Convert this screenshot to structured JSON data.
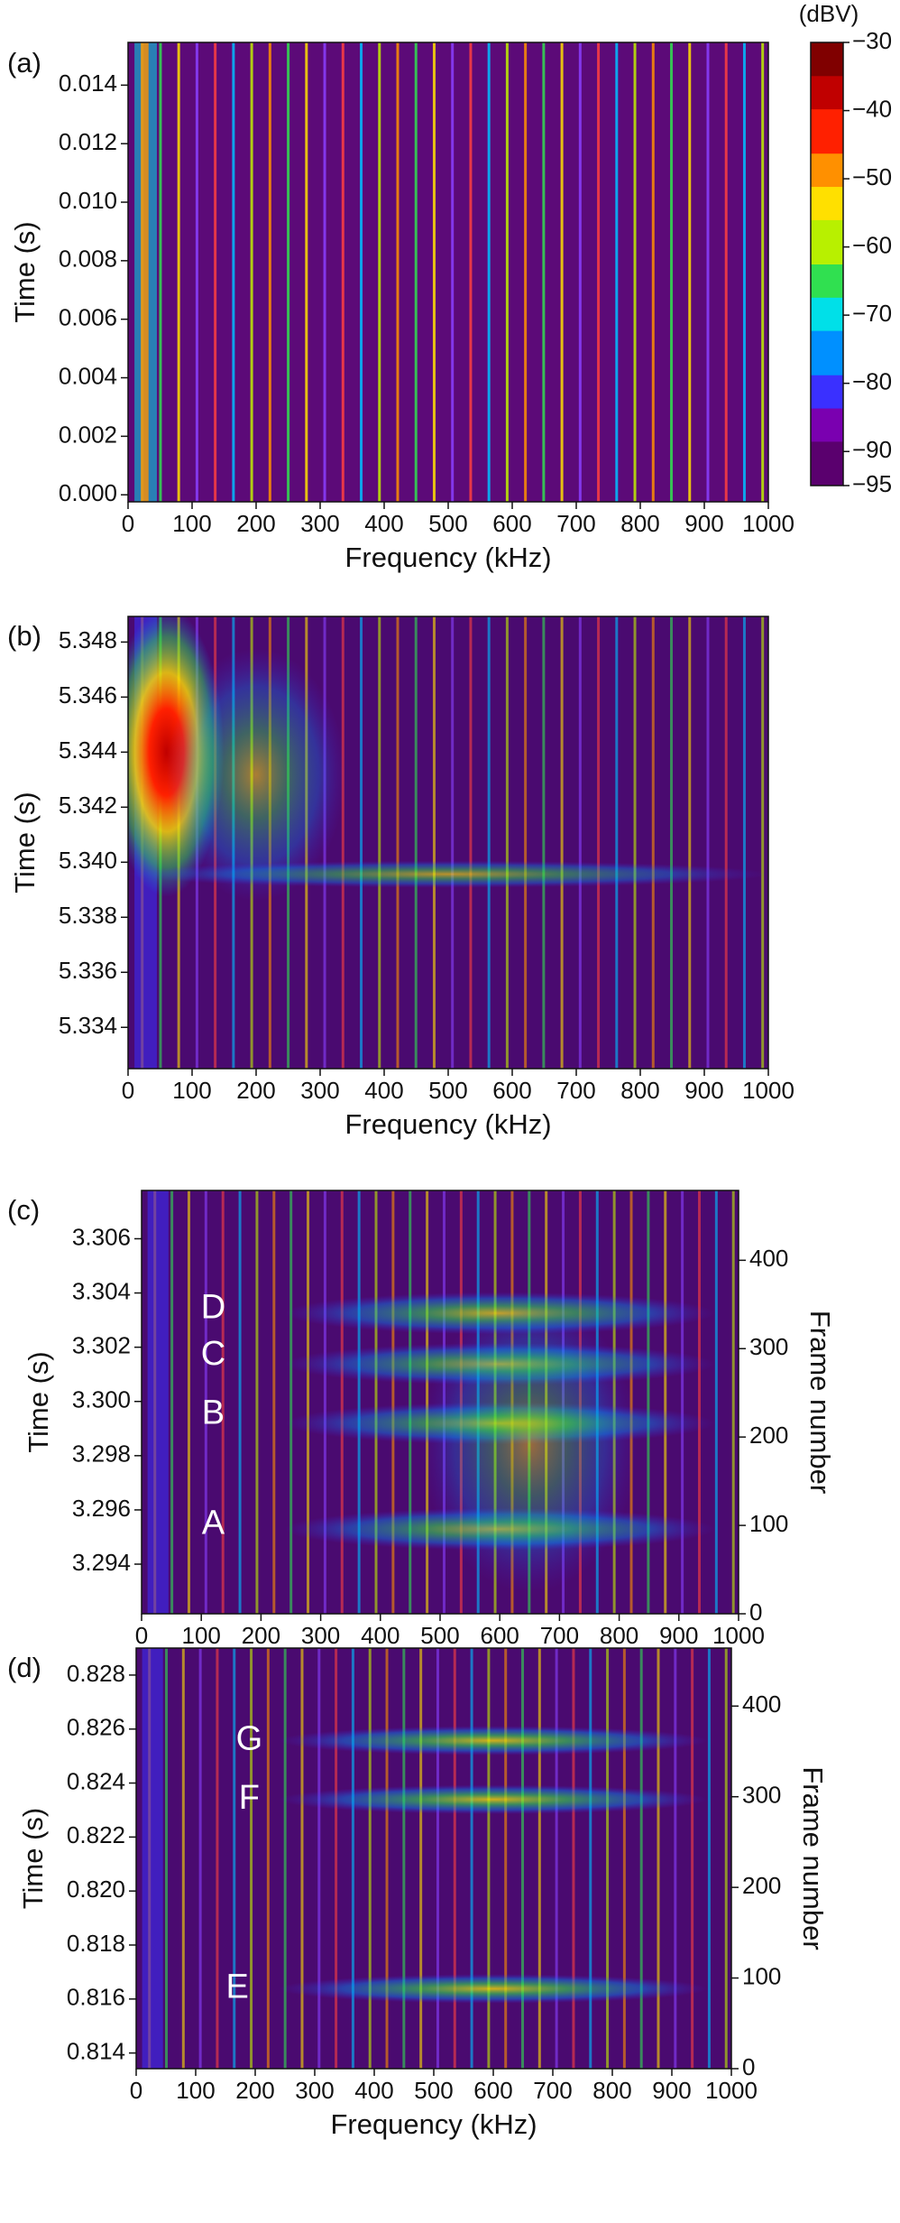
{
  "chart_data": [
    {
      "type": "heatmap",
      "panel_label": "(a)",
      "xlabel": "Frequency (kHz)",
      "ylabel": "Time (s)",
      "xlim": [
        0,
        1000
      ],
      "xticks": [
        0,
        100,
        200,
        300,
        400,
        500,
        600,
        700,
        800,
        900,
        1000
      ],
      "ylim": [
        -0.00024,
        0.01546
      ],
      "yticks": [
        {
          "value": 0,
          "label": "0.000"
        },
        {
          "value": 0.002,
          "label": "0.002"
        },
        {
          "value": 0.004,
          "label": "0.004"
        },
        {
          "value": 0.006,
          "label": "0.006"
        },
        {
          "value": 0.008,
          "label": "0.008"
        },
        {
          "value": 0.01,
          "label": "0.010"
        },
        {
          "value": 0.012,
          "label": "0.012"
        },
        {
          "value": 0.014,
          "label": "0.014"
        }
      ],
      "colorbar": {
        "label": "(dBV)",
        "clim": [
          -95,
          -30
        ],
        "ticks": [
          {
            "value": -30,
            "label": "−30"
          },
          {
            "value": -40,
            "label": "−40"
          },
          {
            "value": -50,
            "label": "−50"
          },
          {
            "value": -60,
            "label": "−60"
          },
          {
            "value": -70,
            "label": "−70"
          },
          {
            "value": -80,
            "label": "−80"
          },
          {
            "value": -90,
            "label": "−90"
          },
          {
            "value": -95,
            "label": "−95"
          }
        ],
        "colors": [
          "#5a006e",
          "#7a00b0",
          "#3a30ff",
          "#0090ff",
          "#00e0e8",
          "#30e050",
          "#b8f000",
          "#ffe000",
          "#ff9000",
          "#ff2000",
          "#c00000",
          "#800000"
        ]
      }
    },
    {
      "type": "heatmap",
      "panel_label": "(b)",
      "xlabel": "Frequency (kHz)",
      "ylabel": "Time (s)",
      "xlim": [
        0,
        1000
      ],
      "xticks": [
        0,
        100,
        200,
        300,
        400,
        500,
        600,
        700,
        800,
        900,
        1000
      ],
      "ylim": [
        5.3325,
        5.34893
      ],
      "yticks": [
        {
          "value": 5.334,
          "label": "5.334"
        },
        {
          "value": 5.336,
          "label": "5.336"
        },
        {
          "value": 5.338,
          "label": "5.338"
        },
        {
          "value": 5.34,
          "label": "5.340"
        },
        {
          "value": 5.342,
          "label": "5.342"
        },
        {
          "value": 5.344,
          "label": "5.344"
        },
        {
          "value": 5.346,
          "label": "5.346"
        },
        {
          "value": 5.348,
          "label": "5.348"
        }
      ]
    },
    {
      "type": "heatmap",
      "panel_label": "(c)",
      "xlabel": "Frequency (kHz)",
      "ylabel": "Time (s)",
      "y2label": "Frame number",
      "xlim": [
        0,
        1000
      ],
      "xticks": [
        0,
        100,
        200,
        300,
        400,
        500,
        600,
        700,
        800,
        900,
        1000
      ],
      "ylim": [
        3.29217,
        3.30778
      ],
      "yticks": [
        {
          "value": 3.294,
          "label": "3.294"
        },
        {
          "value": 3.296,
          "label": "3.296"
        },
        {
          "value": 3.298,
          "label": "3.298"
        },
        {
          "value": 3.3,
          "label": "3.300"
        },
        {
          "value": 3.302,
          "label": "3.302"
        },
        {
          "value": 3.304,
          "label": "3.304"
        },
        {
          "value": 3.306,
          "label": "3.306"
        }
      ],
      "y2lim": [
        0,
        479
      ],
      "y2ticks": [
        0,
        100,
        200,
        300,
        400
      ],
      "annotations": [
        "D",
        "C",
        "B",
        "A"
      ]
    },
    {
      "type": "heatmap",
      "panel_label": "(d)",
      "xlabel": "Frequency (kHz)",
      "ylabel": "Time (s)",
      "y2label": "Frame number",
      "xlim": [
        0,
        1000
      ],
      "xticks": [
        0,
        100,
        200,
        300,
        400,
        500,
        600,
        700,
        800,
        900,
        1000
      ],
      "ylim": [
        0.81342,
        0.829
      ],
      "yticks": [
        {
          "value": 0.814,
          "label": "0.814"
        },
        {
          "value": 0.816,
          "label": "0.816"
        },
        {
          "value": 0.818,
          "label": "0.818"
        },
        {
          "value": 0.82,
          "label": "0.820"
        },
        {
          "value": 0.822,
          "label": "0.822"
        },
        {
          "value": 0.824,
          "label": "0.824"
        },
        {
          "value": 0.826,
          "label": "0.826"
        },
        {
          "value": 0.828,
          "label": "0.828"
        }
      ],
      "y2lim": [
        0,
        464
      ],
      "y2ticks": [
        0,
        100,
        200,
        300,
        400
      ],
      "annotations": [
        "G",
        "F",
        "E"
      ]
    }
  ]
}
